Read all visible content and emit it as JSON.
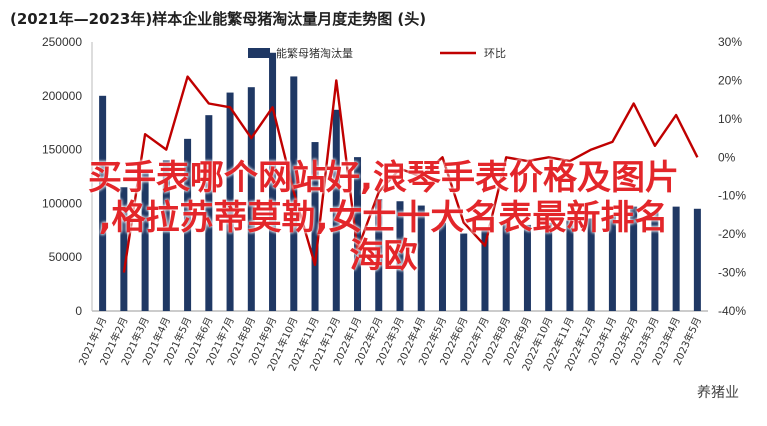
{
  "chart_data": {
    "type": "bar",
    "title": "(2021年—2023年)样本企业能繁母猪淘汰量月度走势图 (头)",
    "categories": [
      "2021年1月",
      "2021年2月",
      "2021年3月",
      "2021年4月",
      "2021年5月",
      "2021年6月",
      "2021年7月",
      "2021年8月",
      "2021年9月",
      "2021年10月",
      "2021年11月",
      "2021年12月",
      "2022年1月",
      "2022年2月",
      "2022年3月",
      "2022年4月",
      "2022年5月",
      "2022年6月",
      "2022年7月",
      "2022年8月",
      "2022年9月",
      "2022年10月",
      "2022年11月",
      "2022年12月",
      "2023年1月",
      "2023年2月",
      "2023年3月",
      "2023年4月",
      "2023年5月"
    ],
    "left_axis": {
      "ylim": [
        0,
        250000
      ],
      "ticks": [
        "0",
        "50000",
        "100000",
        "150000",
        "200000",
        "250000"
      ]
    },
    "right_axis": {
      "ylim": [
        -40,
        30
      ],
      "ticks": [
        "-40%",
        "-30%",
        "-20%",
        "-10%",
        "0%",
        "10%",
        "20%",
        "30%"
      ]
    },
    "series": [
      {
        "name": "能繁母猪淘汰量",
        "kind": "bar",
        "axis": "left",
        "color": "#1f3864",
        "values": [
          200000,
          115000,
          128000,
          140000,
          160000,
          182000,
          203000,
          208000,
          240000,
          218000,
          157000,
          187000,
          143000,
          104000,
          102000,
          98000,
          82000,
          72000,
          77000,
          82000,
          80000,
          82000,
          84000,
          86000,
          89000,
          97000,
          92000,
          97000,
          95000
        ]
      },
      {
        "name": "环比",
        "kind": "line",
        "axis": "right",
        "color": "#c00000",
        "values": [
          null,
          -30,
          6,
          2,
          21,
          14,
          13,
          5,
          13,
          -9,
          -28,
          20,
          -24,
          -9,
          -3,
          -5,
          0,
          -17,
          -23,
          0,
          -1,
          0,
          -1,
          2,
          4,
          14,
          3,
          11,
          0
        ]
      }
    ]
  },
  "overlay": {
    "line1": "买手表哪个网站好,浪琴手表价格及图片",
    "line2": ",格拉苏蒂莫勒,女士十大名表最新排名",
    "line3": "海欧"
  },
  "watermark": "养猪业"
}
